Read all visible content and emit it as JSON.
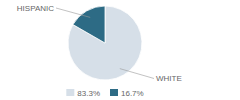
{
  "chart_data": {
    "type": "pie",
    "categories": [
      "WHITE",
      "HISPANIC"
    ],
    "values": [
      83.3,
      16.7
    ],
    "value_labels": [
      "83.3%",
      "16.7%"
    ],
    "colors": [
      "#d6dfe8",
      "#2d6b85"
    ],
    "legend": "bottom"
  }
}
